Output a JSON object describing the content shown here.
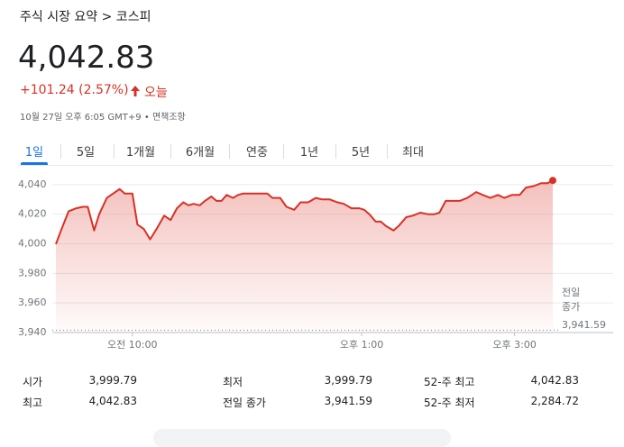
{
  "header": {
    "breadcrumb": "주식 시장 요약 > 코스피",
    "price": "4,042.83",
    "change": "+101.24 (2.57%)",
    "period": "오늘",
    "timestamp": "10월 27일 오후 6:05 GMT+9",
    "separator": "•",
    "disclaimer": "면책조항"
  },
  "tabs": {
    "items": [
      "1일",
      "5일",
      "1개월",
      "6개월",
      "연중",
      "1년",
      "5년",
      "최대"
    ],
    "selected": 0
  },
  "chart_data": {
    "type": "line",
    "color": "#d93025",
    "grid": true,
    "x": [
      540,
      544,
      550,
      556,
      561,
      565,
      570,
      574,
      580,
      585,
      590,
      594,
      600,
      604,
      609,
      614,
      619,
      625,
      630,
      635,
      640,
      644,
      648,
      653,
      657,
      662,
      666,
      670,
      674,
      679,
      683,
      687,
      691,
      696,
      700,
      706,
      710,
      716,
      721,
      727,
      732,
      738,
      744,
      749,
      755,
      761,
      766,
      772,
      778,
      782,
      786,
      791,
      795,
      799,
      805,
      809,
      815,
      820,
      826,
      832,
      837,
      841,
      846,
      851,
      857,
      863,
      870,
      875,
      881,
      887,
      892,
      898,
      904,
      909,
      915,
      921,
      926,
      930
    ],
    "values": [
      3999.79,
      4009,
      4022,
      4024,
      4025,
      4025,
      4009,
      4020,
      4031,
      4034,
      4037,
      4034,
      4034,
      4013,
      4010,
      4003,
      4010,
      4019,
      4016,
      4024,
      4028,
      4026,
      4027,
      4026,
      4029,
      4032,
      4029,
      4029,
      4033,
      4031,
      4033,
      4034,
      4034,
      4034,
      4034,
      4034,
      4031,
      4031,
      4025,
      4023,
      4028,
      4028,
      4031,
      4030,
      4030,
      4028,
      4027,
      4024,
      4024,
      4023,
      4020,
      4015,
      4015,
      4012,
      4009,
      4012,
      4018,
      4019,
      4021,
      4020,
      4020,
      4021,
      4029,
      4029,
      4029,
      4031,
      4035,
      4033,
      4031,
      4033,
      4031,
      4033,
      4033,
      4038,
      4039,
      4041,
      4041,
      4042.83
    ],
    "xlim": [
      540,
      930
    ],
    "xticks": [
      {
        "value": 600,
        "label": "오전 10:00"
      },
      {
        "value": 780,
        "label": "오후 1:00"
      },
      {
        "value": 900,
        "label": "오후 3:00"
      }
    ],
    "ylim": [
      3940,
      4046
    ],
    "yticks": [
      {
        "value": 3940,
        "label": "3,940"
      },
      {
        "value": 3960,
        "label": "3,960"
      },
      {
        "value": 3980,
        "label": "3,980"
      },
      {
        "value": 4000,
        "label": "4,000"
      },
      {
        "value": 4020,
        "label": "4,020"
      },
      {
        "value": 4040,
        "label": "4,040"
      }
    ],
    "previous_close": {
      "label": "전일 종가",
      "value": 3941.59,
      "value_label": "3,941.59"
    }
  },
  "stats": {
    "rows": [
      [
        [
          "시가",
          "3,999.79"
        ],
        [
          "최저",
          "3,999.79"
        ],
        [
          "52-주 최고",
          "4,042.83"
        ]
      ],
      [
        [
          "최고",
          "4,042.83"
        ],
        [
          "전일 종가",
          "3,941.59"
        ],
        [
          "52-주 최저",
          "2,284.72"
        ]
      ]
    ]
  }
}
